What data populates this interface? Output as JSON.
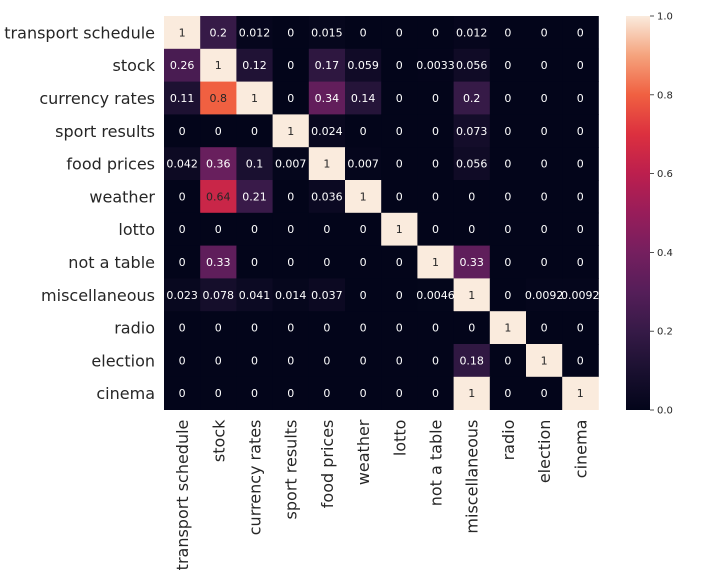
{
  "chart_data": {
    "type": "heatmap",
    "title": "",
    "xlabel": "",
    "ylabel": "",
    "rows": [
      "transport schedule",
      "stock",
      "currency rates",
      "sport results",
      "food prices",
      "weather",
      "lotto",
      "not a table",
      "miscellaneous",
      "radio",
      "election",
      "cinema"
    ],
    "columns": [
      "transport schedule",
      "stock",
      "currency rates",
      "sport results",
      "food prices",
      "weather",
      "lotto",
      "not a table",
      "miscellaneous",
      "radio",
      "election",
      "cinema"
    ],
    "values": [
      [
        1,
        0.2,
        0.012,
        0,
        0.015,
        0,
        0,
        0,
        0.012,
        0,
        0,
        0
      ],
      [
        0.26,
        1,
        0.12,
        0,
        0.17,
        0.059,
        0,
        0.0033,
        0.056,
        0,
        0,
        0
      ],
      [
        0.11,
        0.8,
        1,
        0,
        0.34,
        0.14,
        0,
        0,
        0.2,
        0,
        0,
        0
      ],
      [
        0,
        0,
        0,
        1,
        0.024,
        0,
        0,
        0,
        0.073,
        0,
        0,
        0
      ],
      [
        0.042,
        0.36,
        0.1,
        0.007,
        1,
        0.007,
        0,
        0,
        0.056,
        0,
        0,
        0
      ],
      [
        0,
        0.64,
        0.21,
        0,
        0.036,
        1,
        0,
        0,
        0,
        0,
        0,
        0
      ],
      [
        0,
        0,
        0,
        0,
        0,
        0,
        1,
        0,
        0,
        0,
        0,
        0
      ],
      [
        0,
        0.33,
        0,
        0,
        0,
        0,
        0,
        1,
        0.33,
        0,
        0,
        0
      ],
      [
        0.023,
        0.078,
        0.041,
        0.014,
        0.037,
        0,
        0,
        0.0046,
        1,
        0,
        0.0092,
        0.0092
      ],
      [
        0,
        0,
        0,
        0,
        0,
        0,
        0,
        0,
        0,
        1,
        0,
        0
      ],
      [
        0,
        0,
        0,
        0,
        0,
        0,
        0,
        0,
        0.18,
        0,
        1,
        0
      ],
      [
        0,
        0,
        0,
        0,
        0,
        0,
        0,
        0,
        1,
        0,
        0,
        1
      ]
    ],
    "colorbar": {
      "min": 0,
      "max": 1,
      "ticks": [
        0.0,
        0.2,
        0.4,
        0.6,
        0.8,
        1.0
      ],
      "tick_labels": [
        "0.0",
        "0.2",
        "0.4",
        "0.6",
        "0.8",
        "1.0"
      ]
    },
    "colormap": "rocket"
  }
}
